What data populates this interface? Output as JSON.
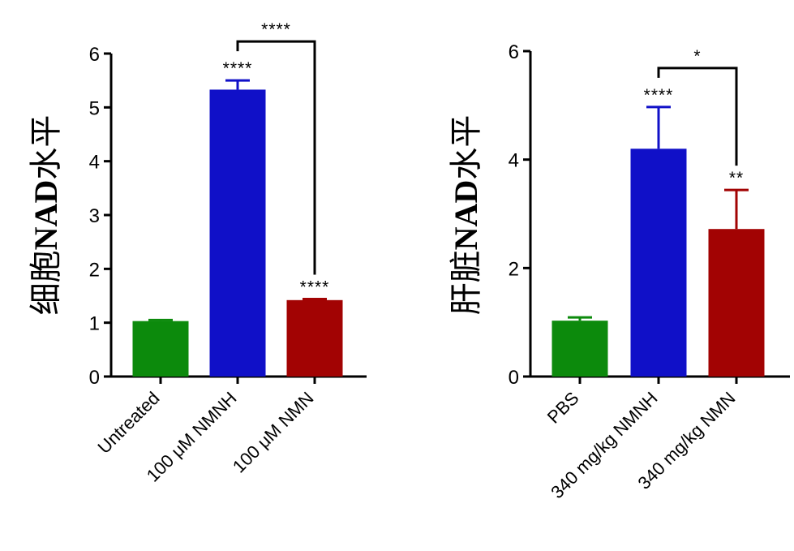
{
  "chart_data": [
    {
      "type": "bar",
      "ylabel_parts": [
        "细胞",
        "NAD",
        "水平"
      ],
      "categories": [
        "Untreated",
        "100 μM NMNH",
        "100 μM NMN"
      ],
      "values": [
        1.03,
        5.33,
        1.42
      ],
      "errors": [
        0.02,
        0.17,
        0.02
      ],
      "colors": [
        "#0c8a0c",
        "#1010c8",
        "#a20303"
      ],
      "ylim": [
        0,
        6
      ],
      "yticks": [
        "0",
        "1",
        "2",
        "3",
        "4",
        "5",
        "6"
      ],
      "bar_labels": [
        "",
        "****",
        "****"
      ],
      "comparison": {
        "from": 1,
        "to": 2,
        "label": "****"
      }
    },
    {
      "type": "bar",
      "ylabel_parts": [
        "肝脏",
        "NAD",
        "水平"
      ],
      "categories": [
        "PBS",
        "340 mg/kg NMNH",
        "340 mg/kg NMN"
      ],
      "values": [
        1.03,
        4.2,
        2.72
      ],
      "errors": [
        0.06,
        0.77,
        0.72
      ],
      "colors": [
        "#0c8a0c",
        "#1010c8",
        "#a20303"
      ],
      "ylim": [
        0,
        6
      ],
      "yticks": [
        "0",
        "2",
        "4",
        "6"
      ],
      "bar_labels": [
        "",
        "****",
        "**"
      ],
      "comparison": {
        "from": 1,
        "to": 2,
        "label": "*"
      }
    }
  ]
}
